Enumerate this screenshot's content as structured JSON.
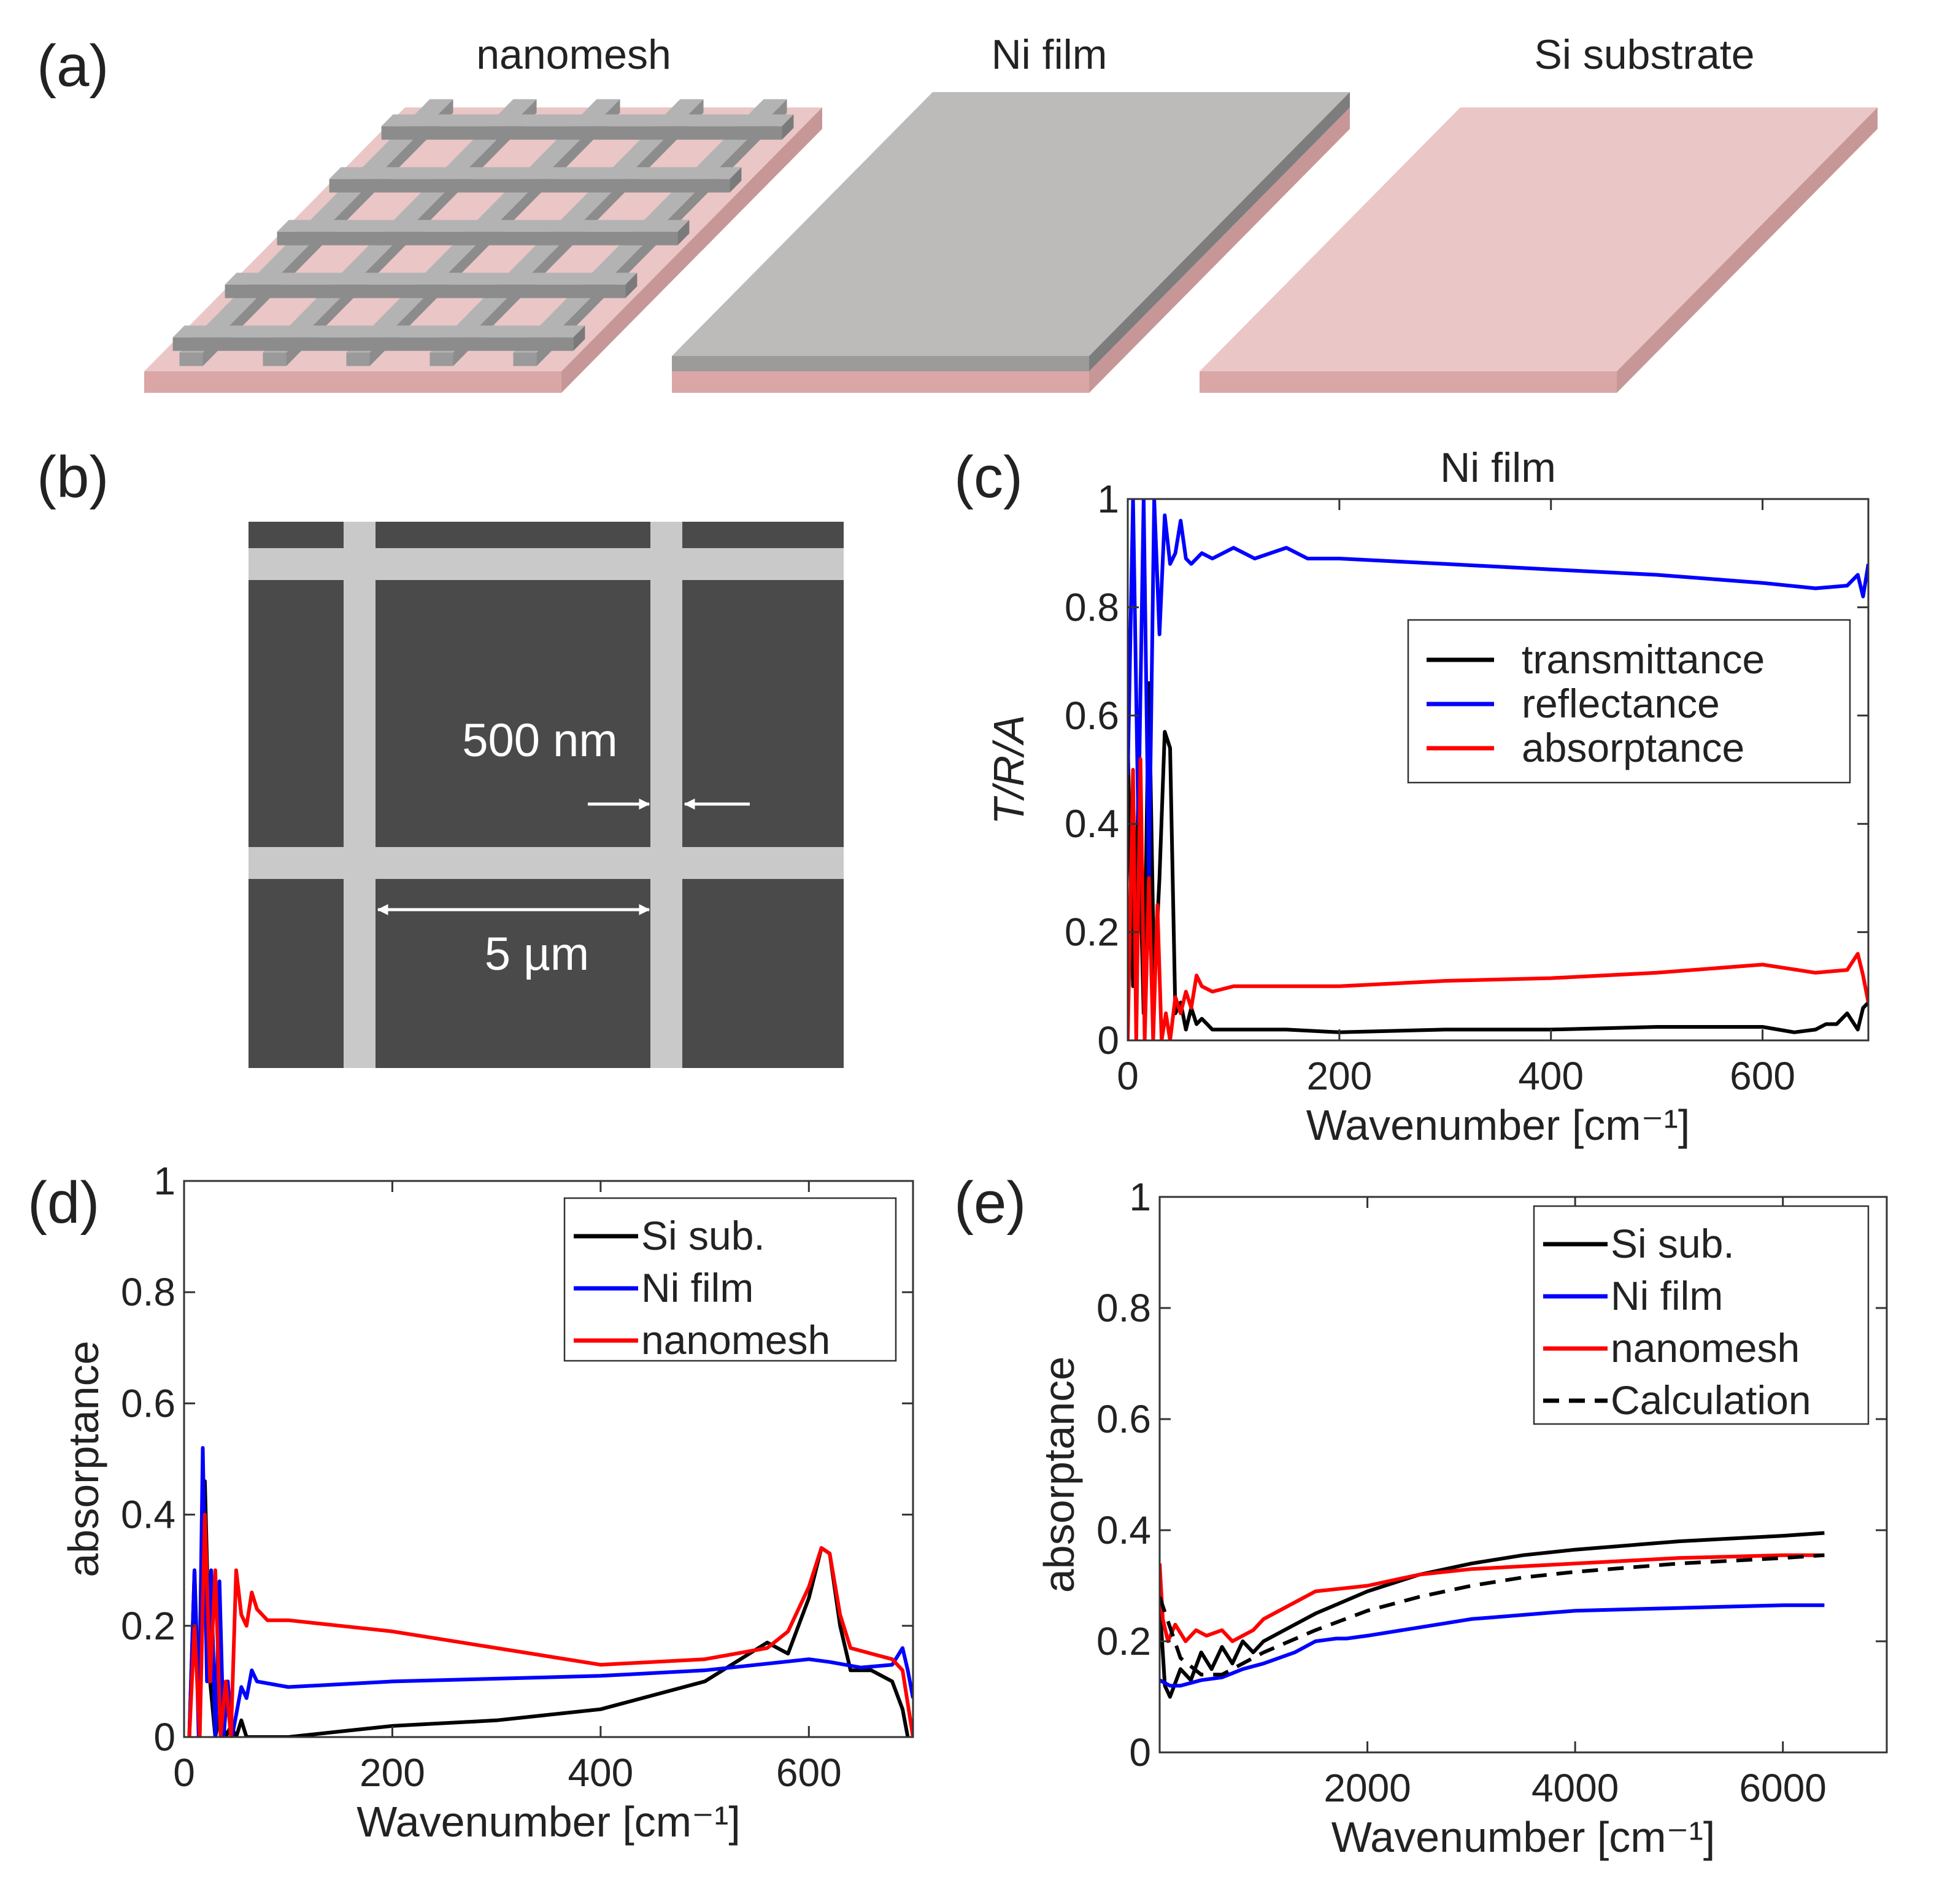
{
  "panels": {
    "a": {
      "label": "(a)",
      "titles": [
        "nanomesh",
        "Ni film",
        "Si substrate"
      ],
      "colors": {
        "substrate_top": "#ebc6c6",
        "substrate_side": "#c79797",
        "metal_top": "#bdbaba",
        "metal_side": "#7d7d7d",
        "mesh_side": "#8c8c8c"
      }
    },
    "b": {
      "label": "(b)",
      "annotations": {
        "linewidth": "500 nm",
        "pitch": "5 µm"
      },
      "colors": {
        "background": "#4a4a4a",
        "lines": "#c9c9c9",
        "arrows": "#ffffff"
      }
    },
    "c": {
      "label": "(c)"
    },
    "d": {
      "label": "(d)"
    },
    "e": {
      "label": "(e)"
    }
  },
  "chart_data": [
    {
      "id": "c",
      "type": "line",
      "title": "Ni film",
      "xlabel": "Wavenumber [cm⁻¹]",
      "ylabel": "T/R/A",
      "xlim": [
        0,
        700
      ],
      "ylim": [
        0,
        1
      ],
      "xticks": [
        0,
        200,
        400,
        600
      ],
      "yticks": [
        0,
        0.2,
        0.4,
        0.6,
        0.8,
        1
      ],
      "ytick_labels": [
        "0",
        "0.2",
        "0.4",
        "0.6",
        "0.8",
        "1"
      ],
      "legend": {
        "position": "center-right",
        "entries": [
          "transmittance",
          "reflectance",
          "absorptance"
        ]
      },
      "series": [
        {
          "name": "transmittance",
          "color": "#000000",
          "dash": false,
          "x": [
            0,
            5,
            10,
            15,
            20,
            25,
            30,
            35,
            40,
            45,
            50,
            55,
            60,
            65,
            70,
            80,
            100,
            150,
            200,
            300,
            400,
            500,
            600,
            630,
            650,
            660,
            670,
            680,
            690,
            695,
            700
          ],
          "y": [
            0.55,
            0.1,
            0.45,
            0.05,
            0.66,
            0.1,
            0.3,
            0.57,
            0.54,
            0.05,
            0.07,
            0.02,
            0.06,
            0.03,
            0.04,
            0.02,
            0.02,
            0.02,
            0.015,
            0.02,
            0.02,
            0.025,
            0.025,
            0.015,
            0.02,
            0.03,
            0.03,
            0.05,
            0.02,
            0.06,
            0.07
          ]
        },
        {
          "name": "reflectance",
          "color": "#0000ff",
          "dash": false,
          "x": [
            0,
            5,
            10,
            15,
            20,
            25,
            30,
            35,
            40,
            45,
            50,
            55,
            60,
            70,
            80,
            100,
            120,
            150,
            170,
            200,
            250,
            300,
            400,
            500,
            600,
            650,
            680,
            690,
            695,
            700
          ],
          "y": [
            0.49,
            1.0,
            0.4,
            1.0,
            0.3,
            1.0,
            0.75,
            0.97,
            0.88,
            0.9,
            0.96,
            0.89,
            0.88,
            0.9,
            0.89,
            0.91,
            0.89,
            0.91,
            0.89,
            0.89,
            0.885,
            0.88,
            0.87,
            0.86,
            0.845,
            0.835,
            0.84,
            0.86,
            0.82,
            0.88
          ]
        },
        {
          "name": "absorptance",
          "color": "#ff0000",
          "dash": false,
          "x": [
            0,
            5,
            8,
            12,
            16,
            20,
            24,
            28,
            32,
            36,
            40,
            45,
            50,
            55,
            60,
            65,
            70,
            80,
            100,
            150,
            200,
            300,
            400,
            500,
            600,
            650,
            680,
            690,
            695,
            700
          ],
          "y": [
            0.0,
            0.5,
            0.0,
            0.52,
            0.0,
            0.3,
            0.0,
            0.25,
            0.0,
            0.05,
            0.0,
            0.08,
            0.05,
            0.09,
            0.06,
            0.12,
            0.1,
            0.09,
            0.1,
            0.1,
            0.1,
            0.11,
            0.115,
            0.125,
            0.14,
            0.125,
            0.13,
            0.16,
            0.12,
            0.07
          ]
        }
      ]
    },
    {
      "id": "d",
      "type": "line",
      "title": "",
      "xlabel": "Wavenumber [cm⁻¹]",
      "ylabel": "absorptance",
      "xlim": [
        0,
        700
      ],
      "ylim": [
        0,
        1
      ],
      "xticks": [
        0,
        200,
        400,
        600
      ],
      "yticks": [
        0,
        0.2,
        0.4,
        0.6,
        0.8,
        1
      ],
      "ytick_labels": [
        "0",
        "0.2",
        "0.4",
        "0.6",
        "0.8",
        "1"
      ],
      "legend": {
        "position": "top-right",
        "entries": [
          "Si sub.",
          "Ni film",
          "nanomesh"
        ]
      },
      "series": [
        {
          "name": "Si sub.",
          "color": "#000000",
          "dash": false,
          "x": [
            5,
            10,
            15,
            18,
            20,
            25,
            30,
            35,
            40,
            45,
            50,
            55,
            60,
            100,
            150,
            200,
            300,
            400,
            500,
            560,
            580,
            600,
            612,
            620,
            630,
            640,
            660,
            680,
            690,
            695
          ],
          "y": [
            0.0,
            0.3,
            0.0,
            0.45,
            0.46,
            0.1,
            0.0,
            0.05,
            0.0,
            0.02,
            0.0,
            0.03,
            0.0,
            0.0,
            0.01,
            0.02,
            0.03,
            0.05,
            0.1,
            0.17,
            0.15,
            0.25,
            0.34,
            0.33,
            0.2,
            0.12,
            0.12,
            0.1,
            0.05,
            0.0
          ]
        },
        {
          "name": "Ni film",
          "color": "#0000ff",
          "dash": false,
          "x": [
            5,
            10,
            14,
            18,
            22,
            26,
            30,
            34,
            38,
            42,
            46,
            50,
            55,
            60,
            65,
            70,
            100,
            200,
            300,
            400,
            500,
            600,
            620,
            650,
            680,
            690,
            695,
            700
          ],
          "y": [
            0.0,
            0.3,
            0.0,
            0.52,
            0.1,
            0.3,
            0.0,
            0.28,
            0.0,
            0.1,
            0.0,
            0.04,
            0.09,
            0.07,
            0.12,
            0.1,
            0.09,
            0.1,
            0.105,
            0.11,
            0.12,
            0.14,
            0.135,
            0.125,
            0.13,
            0.16,
            0.12,
            0.07
          ]
        },
        {
          "name": "nanomesh",
          "color": "#ff0000",
          "dash": false,
          "x": [
            5,
            10,
            15,
            20,
            25,
            30,
            35,
            40,
            45,
            50,
            55,
            60,
            65,
            70,
            80,
            100,
            150,
            200,
            300,
            400,
            500,
            560,
            580,
            600,
            612,
            620,
            630,
            640,
            660,
            680,
            690,
            695,
            700
          ],
          "y": [
            0.0,
            0.2,
            0.0,
            0.4,
            0.1,
            0.3,
            0.0,
            0.1,
            0.0,
            0.3,
            0.22,
            0.2,
            0.26,
            0.23,
            0.21,
            0.21,
            0.2,
            0.19,
            0.16,
            0.13,
            0.14,
            0.16,
            0.19,
            0.27,
            0.34,
            0.33,
            0.22,
            0.16,
            0.15,
            0.14,
            0.12,
            0.06,
            0.0
          ]
        }
      ]
    },
    {
      "id": "e",
      "type": "line",
      "title": "",
      "xlabel": "Wavenumber [cm⁻¹]",
      "ylabel": "absorptance",
      "xlim": [
        0,
        7000
      ],
      "ylim": [
        0,
        1
      ],
      "xticks": [
        2000,
        4000,
        6000
      ],
      "yticks": [
        0,
        0.2,
        0.4,
        0.6,
        0.8,
        1
      ],
      "ytick_labels": [
        "0",
        "0.2",
        "0.4",
        "0.6",
        "0.8",
        "1"
      ],
      "legend": {
        "position": "top-right",
        "entries": [
          "Si sub.",
          "Ni film",
          "nanomesh",
          "Calculation"
        ]
      },
      "series": [
        {
          "name": "Si sub.",
          "color": "#000000",
          "dash": false,
          "x": [
            0,
            50,
            100,
            200,
            300,
            400,
            500,
            600,
            700,
            800,
            900,
            1000,
            1200,
            1500,
            2000,
            2500,
            3000,
            3500,
            4000,
            5000,
            6000,
            6400
          ],
          "y": [
            0.27,
            0.12,
            0.1,
            0.15,
            0.13,
            0.18,
            0.15,
            0.19,
            0.16,
            0.2,
            0.18,
            0.2,
            0.22,
            0.25,
            0.29,
            0.32,
            0.34,
            0.355,
            0.365,
            0.38,
            0.39,
            0.395
          ]
        },
        {
          "name": "Ni film",
          "color": "#0000ff",
          "dash": false,
          "x": [
            0,
            100,
            200,
            400,
            600,
            800,
            1000,
            1300,
            1500,
            1700,
            1800,
            2000,
            2500,
            3000,
            4000,
            5000,
            6000,
            6400
          ],
          "y": [
            0.13,
            0.12,
            0.12,
            0.13,
            0.135,
            0.15,
            0.16,
            0.18,
            0.2,
            0.205,
            0.205,
            0.21,
            0.225,
            0.24,
            0.255,
            0.26,
            0.265,
            0.265
          ]
        },
        {
          "name": "nanomesh",
          "color": "#ff0000",
          "dash": false,
          "x": [
            0,
            30,
            80,
            150,
            250,
            350,
            450,
            600,
            700,
            800,
            900,
            1000,
            1300,
            1500,
            2000,
            2500,
            3000,
            3500,
            4000,
            5000,
            6000,
            6400
          ],
          "y": [
            0.34,
            0.24,
            0.2,
            0.23,
            0.2,
            0.22,
            0.21,
            0.22,
            0.2,
            0.21,
            0.22,
            0.24,
            0.27,
            0.29,
            0.3,
            0.32,
            0.33,
            0.335,
            0.34,
            0.35,
            0.355,
            0.355
          ]
        },
        {
          "name": "Calculation",
          "color": "#000000",
          "dash": true,
          "x": [
            0,
            200,
            400,
            600,
            800,
            1000,
            1500,
            2000,
            2500,
            3000,
            3500,
            4000,
            5000,
            6000,
            6400
          ],
          "y": [
            0.28,
            0.17,
            0.14,
            0.14,
            0.16,
            0.18,
            0.22,
            0.255,
            0.28,
            0.3,
            0.315,
            0.325,
            0.34,
            0.35,
            0.355
          ]
        }
      ]
    }
  ]
}
